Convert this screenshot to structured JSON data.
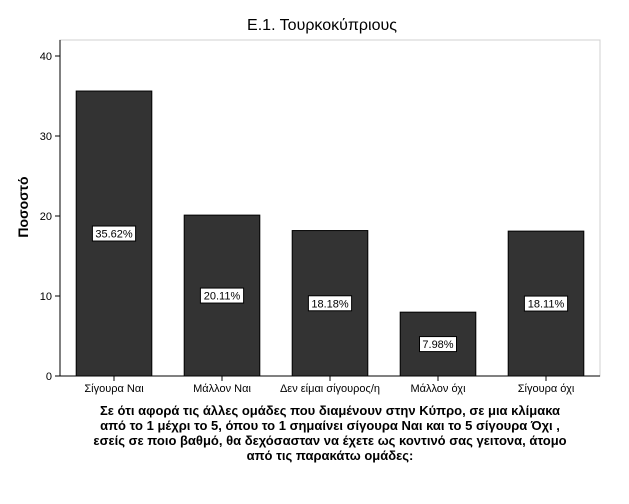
{
  "chart_data": {
    "type": "bar",
    "title": "Ε.1. Τουρκοκύπριους",
    "ylabel": "Ποσοστό",
    "xlabel_lines": [
      "Σε ότι αφορά τις άλλες ομάδες που διαμένουν στην Κύπρο, σε μια κλίμακα",
      "από το 1 μέχρι το 5, όπου το 1 σημαίνει σίγουρα Ναι και το 5 σίγουρα Όχι ,",
      "εσείς σε ποιο βαθμό, θα δεχόσασταν να έχετε ως κοντινό σας γειτονα, άτομο",
      "από τις παρακάτω ομάδες:"
    ],
    "categories": [
      "Σίγουρα Ναι",
      "Μάλλον Ναι",
      "Δεν είμαι σίγουρος/η",
      "Μάλλον όχι",
      "Σίγουρα όχι"
    ],
    "values": [
      35.62,
      20.11,
      18.18,
      7.98,
      18.11
    ],
    "data_labels": [
      "35.62%",
      "20.11%",
      "18.18%",
      "7.98%",
      "18.11%"
    ],
    "y_ticks": [
      0,
      10,
      20,
      30,
      40
    ],
    "ylim": [
      0,
      42
    ],
    "grid": false,
    "bar_color": "#333333"
  }
}
